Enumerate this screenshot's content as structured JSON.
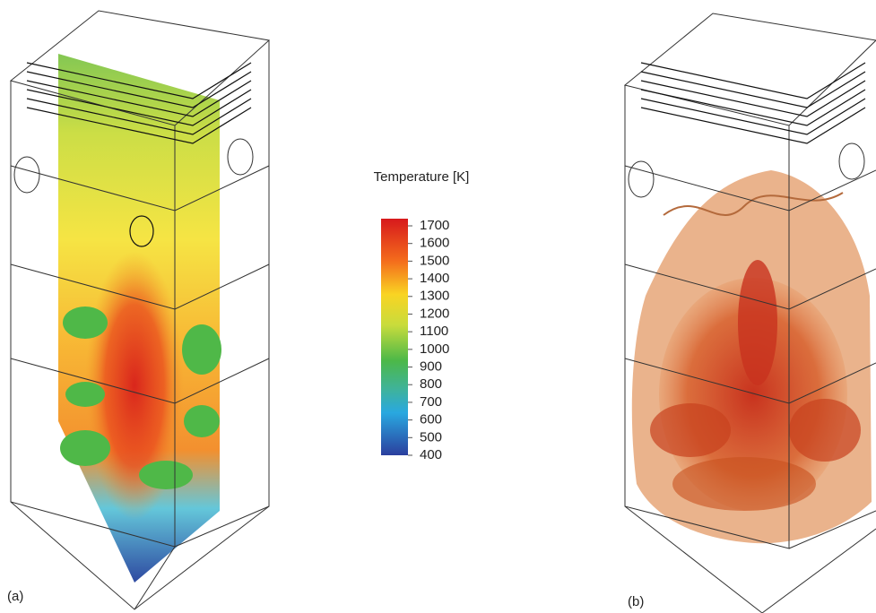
{
  "colorbar": {
    "title": "Temperature [K]",
    "ticks": [
      1700,
      1600,
      1500,
      1400,
      1300,
      1200,
      1100,
      1000,
      900,
      800,
      700,
      600,
      500,
      400
    ]
  },
  "panels": [
    {
      "label": "(a)"
    },
    {
      "label": "(b)"
    }
  ]
}
